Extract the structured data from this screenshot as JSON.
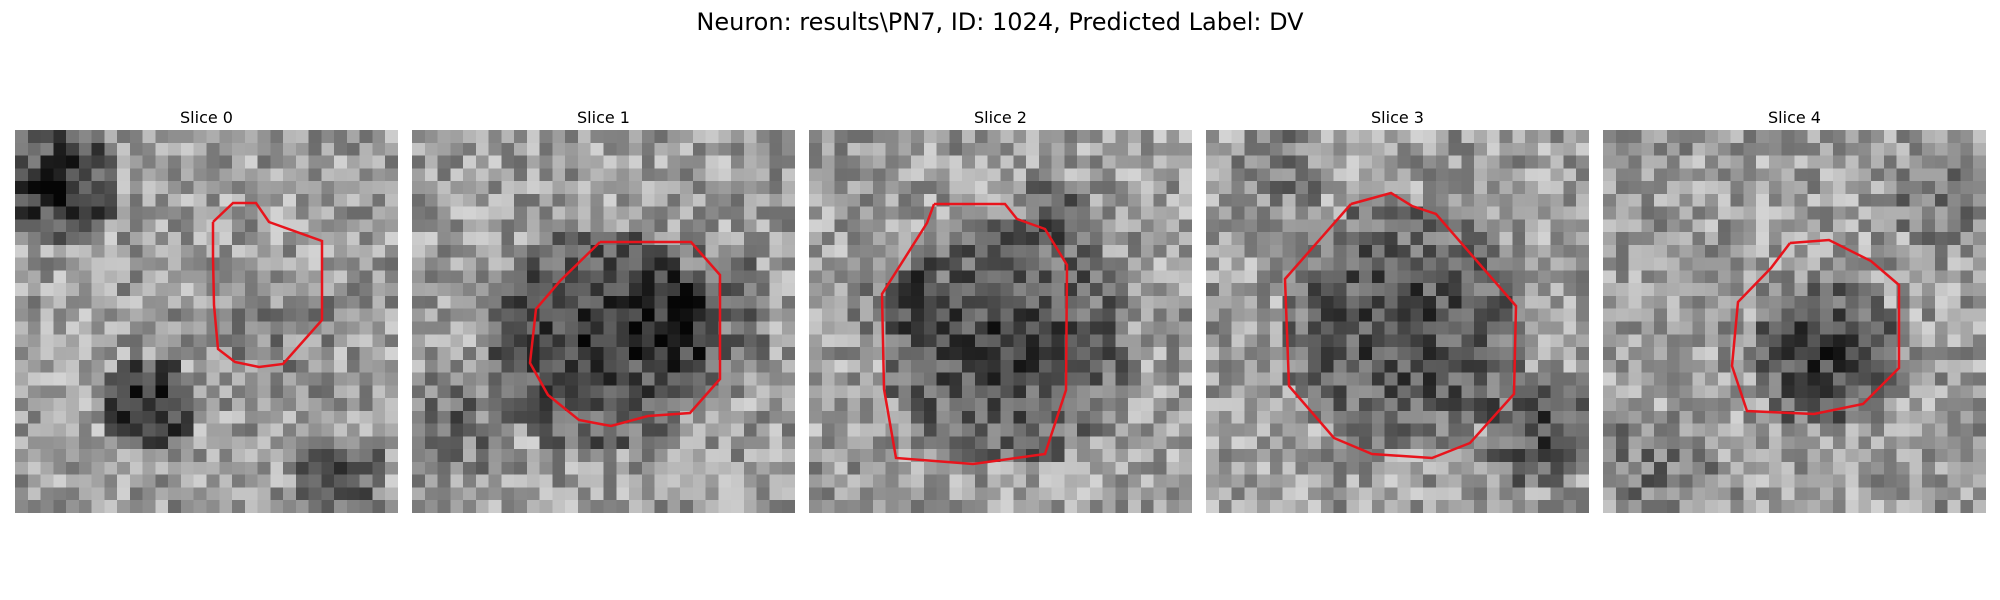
{
  "title": "Neuron: results\\PN7, ID: 1024, Predicted Label: DV",
  "colors": {
    "contour": "#e8141c",
    "background": "#ffffff"
  },
  "panels": [
    {
      "label": "Slice 0",
      "seed": 11,
      "dark_region": "upper-left and lower-left",
      "contour": "small octagon right of center"
    },
    {
      "label": "Slice 1",
      "seed": 23,
      "dark_region": "center",
      "contour": "medium octagon center"
    },
    {
      "label": "Slice 2",
      "seed": 37,
      "dark_region": "center",
      "contour": "large octagon center"
    },
    {
      "label": "Slice 3",
      "seed": 41,
      "dark_region": "center",
      "contour": "large octagon center"
    },
    {
      "label": "Slice 4",
      "seed": 53,
      "dark_region": "center-right",
      "contour": "medium octagon center-right"
    }
  ]
}
